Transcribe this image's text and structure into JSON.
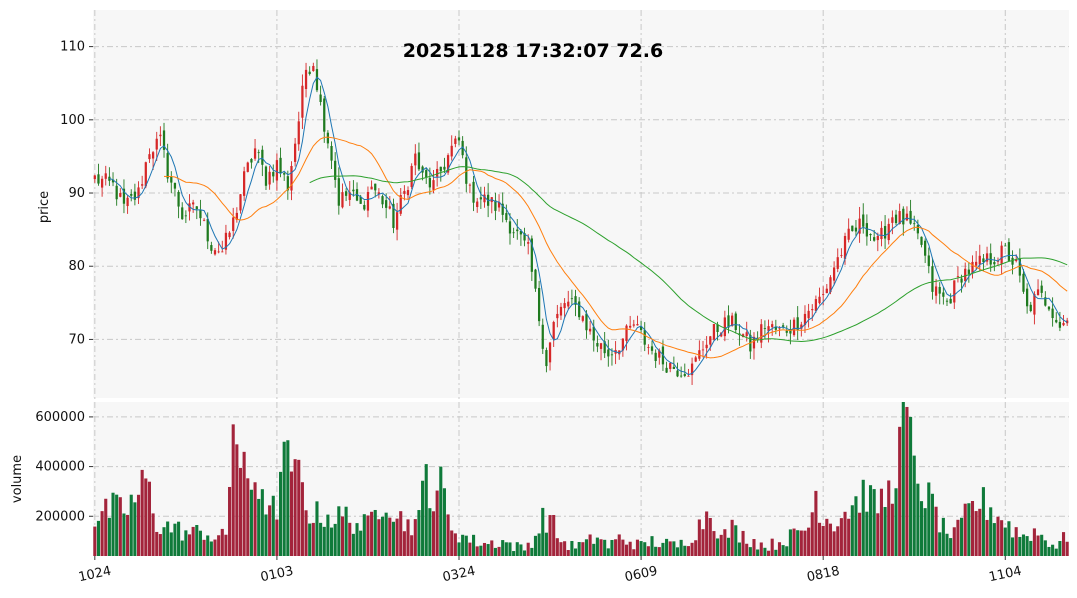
{
  "chart_data": {
    "type": "candlestick",
    "title": "20251128 17:32:07   72.6",
    "ylabel": "price",
    "volume_label": "volume",
    "ylim": [
      62,
      115
    ],
    "volume_ylim": [
      40000,
      660000
    ],
    "yticks": [
      "110",
      "100",
      "90",
      "80",
      "70"
    ],
    "volume_yticks": [
      "600000",
      "400000",
      "200000"
    ],
    "xticks": [
      "1024",
      "0103",
      "0324",
      "0609",
      "0818",
      "1104"
    ],
    "xtick_index": [
      0,
      50,
      100,
      150,
      200,
      250
    ],
    "n_bars": 268,
    "grid": true,
    "colors": {
      "up": "#d62728",
      "down": "#1f7a1f",
      "vol_up": "#a3243b",
      "vol_down": "#0f7a3a",
      "ma_short": "#1f77b4",
      "ma_mid": "#ff7f0e",
      "ma_long": "#2ca02c",
      "panel_bg": "#f7f7f7",
      "grid": "#c8c8c8"
    },
    "close_anchors": [
      [
        0,
        92
      ],
      [
        5,
        91
      ],
      [
        8,
        88
      ],
      [
        12,
        90
      ],
      [
        15,
        96
      ],
      [
        18,
        97
      ],
      [
        20,
        93
      ],
      [
        24,
        87
      ],
      [
        28,
        88
      ],
      [
        32,
        83
      ],
      [
        35,
        82
      ],
      [
        38,
        86
      ],
      [
        41,
        92
      ],
      [
        44,
        96
      ],
      [
        47,
        92
      ],
      [
        50,
        94
      ],
      [
        53,
        91
      ],
      [
        56,
        100
      ],
      [
        58,
        107
      ],
      [
        60,
        108
      ],
      [
        62,
        102
      ],
      [
        65,
        95
      ],
      [
        67,
        89
      ],
      [
        70,
        90
      ],
      [
        73,
        88
      ],
      [
        76,
        91
      ],
      [
        79,
        89
      ],
      [
        82,
        86
      ],
      [
        85,
        90
      ],
      [
        88,
        95
      ],
      [
        90,
        92
      ],
      [
        93,
        91
      ],
      [
        96,
        94
      ],
      [
        98,
        96
      ],
      [
        100,
        97
      ],
      [
        103,
        90
      ],
      [
        107,
        89
      ],
      [
        111,
        88
      ],
      [
        115,
        85
      ],
      [
        119,
        82
      ],
      [
        122,
        73
      ],
      [
        124,
        67
      ],
      [
        126,
        72
      ],
      [
        129,
        75
      ],
      [
        133,
        74
      ],
      [
        137,
        70
      ],
      [
        141,
        68
      ],
      [
        145,
        70
      ],
      [
        148,
        72
      ],
      [
        152,
        69
      ],
      [
        156,
        67
      ],
      [
        160,
        66
      ],
      [
        164,
        66
      ],
      [
        168,
        70
      ],
      [
        172,
        72
      ],
      [
        176,
        72
      ],
      [
        180,
        69
      ],
      [
        184,
        72
      ],
      [
        188,
        71
      ],
      [
        192,
        72
      ],
      [
        196,
        74
      ],
      [
        200,
        76
      ],
      [
        203,
        80
      ],
      [
        207,
        84
      ],
      [
        211,
        86
      ],
      [
        215,
        83
      ],
      [
        219,
        87
      ],
      [
        223,
        86
      ],
      [
        227,
        83
      ],
      [
        230,
        77
      ],
      [
        234,
        75
      ],
      [
        238,
        79
      ],
      [
        242,
        80
      ],
      [
        246,
        81
      ],
      [
        250,
        82
      ],
      [
        253,
        80
      ],
      [
        256,
        74
      ],
      [
        259,
        76
      ],
      [
        262,
        75
      ],
      [
        265,
        72
      ],
      [
        267,
        72.6
      ]
    ],
    "volume_anchors": [
      [
        0,
        190000
      ],
      [
        5,
        230000
      ],
      [
        8,
        220000
      ],
      [
        12,
        280000
      ],
      [
        14,
        350000
      ],
      [
        17,
        170000
      ],
      [
        22,
        150000
      ],
      [
        26,
        130000
      ],
      [
        30,
        140000
      ],
      [
        33,
        110000
      ],
      [
        36,
        120000
      ],
      [
        38,
        570000
      ],
      [
        40,
        420000
      ],
      [
        42,
        300000
      ],
      [
        44,
        350000
      ],
      [
        46,
        320000
      ],
      [
        48,
        200000
      ],
      [
        50,
        250000
      ],
      [
        52,
        480000
      ],
      [
        54,
        330000
      ],
      [
        56,
        360000
      ],
      [
        58,
        250000
      ],
      [
        60,
        200000
      ],
      [
        63,
        210000
      ],
      [
        66,
        190000
      ],
      [
        69,
        200000
      ],
      [
        72,
        170000
      ],
      [
        75,
        160000
      ],
      [
        78,
        250000
      ],
      [
        80,
        290000
      ],
      [
        83,
        200000
      ],
      [
        86,
        170000
      ],
      [
        89,
        180000
      ],
      [
        91,
        400000
      ],
      [
        93,
        260000
      ],
      [
        95,
        380000
      ],
      [
        97,
        180000
      ],
      [
        100,
        130000
      ],
      [
        104,
        100000
      ],
      [
        108,
        90000
      ],
      [
        112,
        100000
      ],
      [
        115,
        80000
      ],
      [
        118,
        70000
      ],
      [
        121,
        120000
      ],
      [
        123,
        190000
      ],
      [
        125,
        190000
      ],
      [
        128,
        100000
      ],
      [
        131,
        80000
      ],
      [
        135,
        90000
      ],
      [
        138,
        120000
      ],
      [
        141,
        80000
      ],
      [
        144,
        110000
      ],
      [
        147,
        100000
      ],
      [
        150,
        80000
      ],
      [
        153,
        100000
      ],
      [
        156,
        90000
      ],
      [
        160,
        80000
      ],
      [
        163,
        110000
      ],
      [
        166,
        160000
      ],
      [
        169,
        240000
      ],
      [
        172,
        110000
      ],
      [
        175,
        150000
      ],
      [
        178,
        120000
      ],
      [
        181,
        100000
      ],
      [
        184,
        80000
      ],
      [
        187,
        90000
      ],
      [
        190,
        110000
      ],
      [
        193,
        130000
      ],
      [
        196,
        160000
      ],
      [
        198,
        290000
      ],
      [
        200,
        200000
      ],
      [
        203,
        180000
      ],
      [
        206,
        220000
      ],
      [
        209,
        260000
      ],
      [
        212,
        300000
      ],
      [
        214,
        240000
      ],
      [
        217,
        270000
      ],
      [
        219,
        320000
      ],
      [
        221,
        550000
      ],
      [
        223,
        640000
      ],
      [
        225,
        370000
      ],
      [
        227,
        320000
      ],
      [
        230,
        240000
      ],
      [
        233,
        150000
      ],
      [
        236,
        120000
      ],
      [
        240,
        220000
      ],
      [
        243,
        260000
      ],
      [
        246,
        230000
      ],
      [
        249,
        190000
      ],
      [
        252,
        150000
      ],
      [
        255,
        120000
      ],
      [
        258,
        140000
      ],
      [
        261,
        110000
      ],
      [
        264,
        80000
      ],
      [
        267,
        120000
      ]
    ],
    "volume_spikes": [
      [
        38,
        570000
      ],
      [
        52,
        500000
      ],
      [
        91,
        410000
      ],
      [
        95,
        400000
      ],
      [
        54,
        380000
      ],
      [
        221,
        560000
      ],
      [
        223,
        640000
      ],
      [
        224,
        600000
      ]
    ],
    "moving_average_periods": [
      5,
      20,
      60
    ]
  }
}
